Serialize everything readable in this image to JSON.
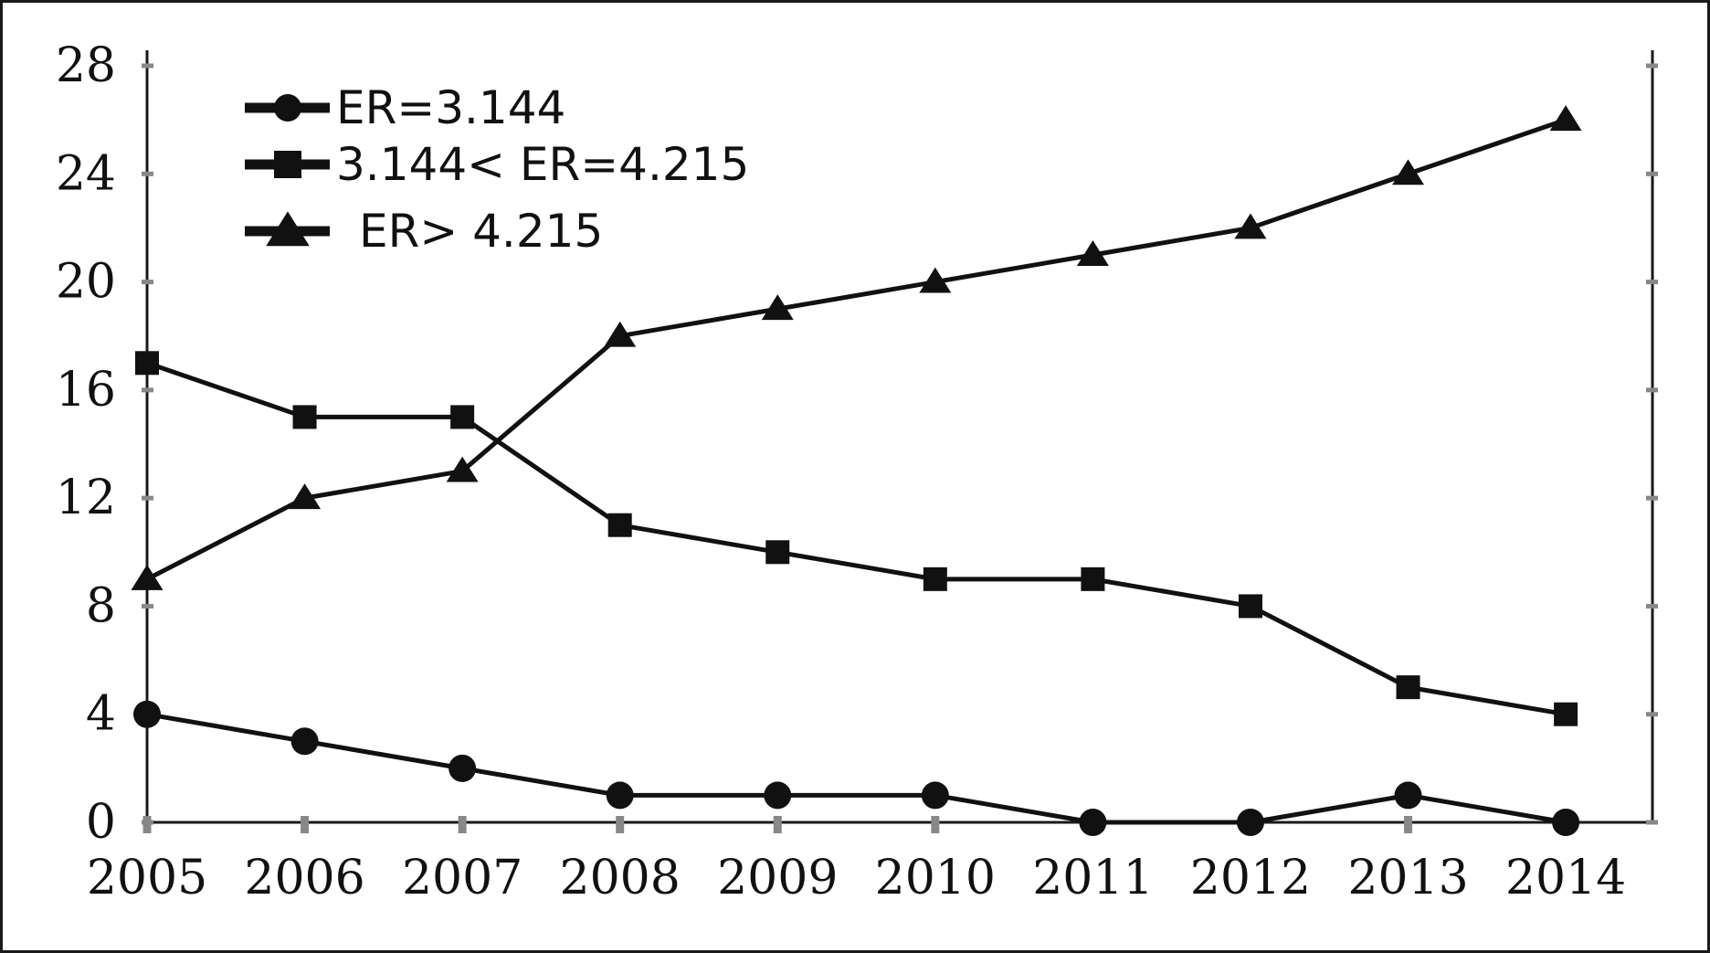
{
  "chart_data": {
    "type": "line",
    "title": "",
    "xlabel": "",
    "ylabel": "",
    "categories": [
      "2005",
      "2006",
      "2007",
      "2008",
      "2009",
      "2010",
      "2011",
      "2012",
      "2013",
      "2014"
    ],
    "ylim": [
      0,
      28
    ],
    "yticks": [
      "0",
      "4",
      "8",
      "12",
      "16",
      "20",
      "24",
      "28"
    ],
    "grid": false,
    "legend_position": "top-left",
    "series": [
      {
        "name": "ER=3.144",
        "marker": "circle",
        "values": [
          4,
          3,
          2,
          1,
          1,
          1,
          0,
          0,
          1,
          0
        ]
      },
      {
        "name": "3.144< ER=4.215",
        "marker": "square",
        "values": [
          17,
          15,
          15,
          11,
          10,
          9,
          9,
          8,
          5,
          4
        ]
      },
      {
        "name": "ER> 4.215",
        "marker": "triangle",
        "values": [
          9,
          12,
          13,
          18,
          19,
          20,
          21,
          22,
          24,
          26
        ]
      }
    ],
    "colors": {
      "line": "#111111",
      "axis": "#1a1a1a",
      "tick_mark": "#888888"
    }
  }
}
